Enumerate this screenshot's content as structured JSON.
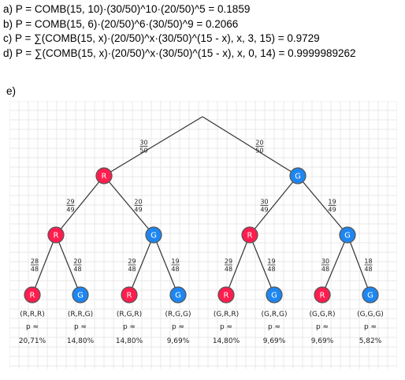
{
  "formulas": [
    "a) P = COMB(15, 10)·(30/50)^10·(20/50)^5 = 0.1859",
    "b) P = COMB(15, 6)·(20/50)^6·(30/50)^9 = 0.2066",
    "c) P = ∑(COMB(15, x)·(20/50)^x·(30/50)^(15 - x), x, 3, 15) = 0.9729",
    "d) P = ∑(COMB(15, x)·(20/50)^x·(30/50)^(15 - x), x, 0, 14) = 0.9999989262"
  ],
  "part_e_label": "e)",
  "tree": {
    "root_branches": [
      {
        "num": "30",
        "den": "50"
      },
      {
        "num": "20",
        "den": "50"
      }
    ],
    "level1": [
      {
        "label": "R",
        "color": "red",
        "branches": [
          {
            "num": "29",
            "den": "49"
          },
          {
            "num": "20",
            "den": "49"
          }
        ]
      },
      {
        "label": "G",
        "color": "blue",
        "branches": [
          {
            "num": "30",
            "den": "49"
          },
          {
            "num": "19",
            "den": "49"
          }
        ]
      }
    ],
    "level2": [
      {
        "label": "R",
        "color": "red",
        "branches": [
          {
            "num": "28",
            "den": "48"
          },
          {
            "num": "20",
            "den": "48"
          }
        ]
      },
      {
        "label": "G",
        "color": "blue",
        "branches": [
          {
            "num": "29",
            "den": "48"
          },
          {
            "num": "19",
            "den": "48"
          }
        ]
      },
      {
        "label": "R",
        "color": "red",
        "branches": [
          {
            "num": "29",
            "den": "48"
          },
          {
            "num": "19",
            "den": "48"
          }
        ]
      },
      {
        "label": "G",
        "color": "blue",
        "branches": [
          {
            "num": "30",
            "den": "48"
          },
          {
            "num": "18",
            "den": "48"
          }
        ]
      }
    ],
    "leaves": [
      {
        "label": "R",
        "color": "red",
        "outcome": "(R,R,R)",
        "approx": "p ≈",
        "prob": "20,71%"
      },
      {
        "label": "G",
        "color": "blue",
        "outcome": "(R,R,G)",
        "approx": "p ≈",
        "prob": "14,80%"
      },
      {
        "label": "R",
        "color": "red",
        "outcome": "(R,G,R)",
        "approx": "p ≈",
        "prob": "14,80%"
      },
      {
        "label": "G",
        "color": "blue",
        "outcome": "(R,G,G)",
        "approx": "p ≈",
        "prob": "9,69%"
      },
      {
        "label": "R",
        "color": "red",
        "outcome": "(G,R,R)",
        "approx": "p ≈",
        "prob": "14,80%"
      },
      {
        "label": "G",
        "color": "blue",
        "outcome": "(G,R,G)",
        "approx": "p ≈",
        "prob": "9,69%"
      },
      {
        "label": "R",
        "color": "red",
        "outcome": "(G,G,R)",
        "approx": "p ≈",
        "prob": "9,69%"
      },
      {
        "label": "G",
        "color": "blue",
        "outcome": "(G,G,G)",
        "approx": "p ≈",
        "prob": "5,82%"
      }
    ],
    "colors": {
      "red": "#ff1d4e",
      "blue": "#1e86f0"
    }
  }
}
